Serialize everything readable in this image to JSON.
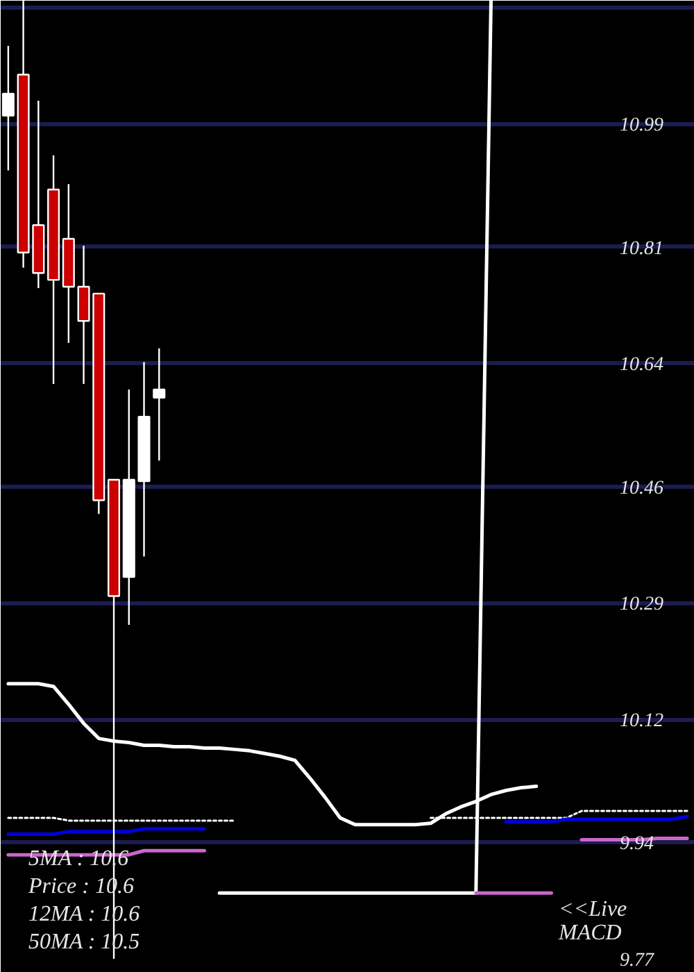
{
  "chart_data": {
    "type": "candlestick",
    "categories": [
      null,
      null,
      null,
      null,
      null,
      null,
      null,
      null,
      null,
      null,
      null,
      null,
      null,
      null,
      null,
      null,
      null,
      null,
      null,
      null,
      null,
      null,
      null,
      null,
      null,
      null,
      null,
      null,
      null,
      null,
      null,
      null,
      null,
      null,
      null,
      null,
      null,
      null,
      null,
      null,
      null,
      null,
      null,
      null,
      null,
      null
    ],
    "ohlc": [
      [
        11.002,
        11.104,
        10.922,
        11.034
      ],
      [
        11.062,
        11.17,
        10.78,
        10.802
      ],
      [
        10.842,
        11.024,
        10.75,
        10.772
      ],
      [
        10.894,
        10.944,
        10.61,
        10.762
      ],
      [
        10.822,
        10.902,
        10.67,
        10.752
      ],
      [
        10.752,
        10.812,
        10.61,
        10.702
      ],
      [
        10.742,
        10.742,
        10.42,
        10.44
      ],
      [
        10.47,
        10.47,
        9.77,
        10.3
      ],
      [
        10.328,
        10.602,
        10.258,
        10.47
      ],
      [
        10.468,
        10.642,
        10.358,
        10.562
      ],
      [
        10.59,
        10.662,
        10.498,
        10.602
      ],
      null,
      null,
      null,
      null,
      null,
      null,
      null,
      null,
      null,
      null,
      null,
      null,
      null,
      null,
      null,
      null,
      null,
      null,
      null,
      null,
      null,
      null,
      null,
      null,
      null,
      null,
      null,
      null,
      null,
      null,
      null,
      null,
      null,
      null,
      null
    ],
    "colors": [
      "#ffffff",
      "#cc0000",
      "#cc0000",
      "#cc0000",
      "#cc0000",
      "#cc0000",
      "#cc0000",
      "#cc0000",
      "#ffffff",
      "#ffffff",
      "#ffffff",
      null,
      null,
      null,
      null,
      null,
      null,
      null,
      null,
      null,
      null,
      null,
      null,
      null,
      null,
      null,
      null,
      null,
      null,
      null,
      null,
      null,
      null,
      null,
      null,
      null,
      null,
      null,
      null,
      null,
      null,
      null,
      null,
      null,
      null,
      null
    ],
    "series": [
      {
        "type": "line",
        "color": "#ffffff",
        "line_style": "solid",
        "values": [
          10.172,
          10.172,
          10.172,
          10.168,
          10.142,
          10.114,
          10.092,
          10.088,
          10.086,
          10.082,
          10.082,
          10.08,
          10.08,
          10.078,
          10.078,
          10.076,
          10.074,
          10.07,
          10.066,
          10.06,
          10.034,
          10.006,
          9.976,
          9.966,
          9.966,
          9.966,
          9.966,
          9.966,
          9.968,
          9.982,
          9.992,
          10.0,
          10.01,
          10.016,
          10.02,
          10.022,
          null,
          null,
          null,
          null,
          null,
          null,
          null,
          null,
          null,
          null
        ]
      },
      {
        "type": "line",
        "color": "#ffffff",
        "line_style": "dotted",
        "values": [
          9.976,
          9.976,
          9.976,
          9.976,
          9.972,
          9.972,
          9.972,
          9.972,
          9.972,
          9.972,
          9.972,
          9.972,
          9.972,
          9.972,
          9.972,
          9.972,
          null,
          null,
          null,
          null,
          null,
          null,
          null,
          null,
          null,
          null,
          null,
          null,
          9.976,
          9.976,
          9.976,
          9.976,
          9.976,
          9.976,
          9.976,
          9.976,
          9.976,
          9.976,
          9.986,
          9.986,
          9.986,
          9.986,
          9.986,
          9.986,
          9.986,
          9.986
        ]
      },
      {
        "type": "line",
        "color": "#0000dd",
        "line_style": "solid",
        "values": [
          9.952,
          9.952,
          9.952,
          9.952,
          9.956,
          9.956,
          9.956,
          9.956,
          9.956,
          9.96,
          9.96,
          9.96,
          9.96,
          9.96,
          null,
          null,
          null,
          null,
          null,
          null,
          null,
          null,
          null,
          null,
          null,
          null,
          null,
          null,
          null,
          null,
          null,
          null,
          null,
          9.97,
          9.97,
          9.97,
          9.97,
          9.974,
          9.974,
          9.974,
          9.974,
          9.974,
          9.974,
          9.974,
          9.974,
          9.978
        ]
      },
      {
        "type": "line",
        "color": "#cc66cc",
        "line_style": "solid",
        "values": [
          9.922,
          9.922,
          9.922,
          9.922,
          9.922,
          9.922,
          9.922,
          9.922,
          9.922,
          9.928,
          9.928,
          9.928,
          9.928,
          9.928,
          null,
          null,
          null,
          null,
          null,
          null,
          null,
          null,
          null,
          null,
          null,
          null,
          null,
          null,
          null,
          null,
          null,
          null,
          null,
          null,
          null,
          null,
          null,
          null,
          9.944,
          9.944,
          9.944,
          9.944,
          9.944,
          9.946,
          9.946,
          9.946
        ]
      },
      {
        "type": "line",
        "color": "#ffffff",
        "line_style": "solid",
        "values": [
          null,
          null,
          null,
          null,
          null,
          null,
          null,
          null,
          null,
          null,
          null,
          null,
          null,
          null,
          9.866,
          9.866,
          9.866,
          9.866,
          9.866,
          9.866,
          9.866,
          9.866,
          9.866,
          9.866,
          9.866,
          9.866,
          9.866,
          9.866,
          9.866,
          9.866,
          9.866,
          9.866,
          11.17,
          null,
          null,
          null,
          null,
          null,
          null,
          null,
          null,
          null,
          null,
          null,
          null,
          null
        ]
      },
      {
        "type": "line",
        "color": "#cc66cc",
        "line_style": "solid",
        "values": [
          null,
          null,
          null,
          null,
          null,
          null,
          null,
          null,
          null,
          null,
          null,
          null,
          null,
          null,
          null,
          null,
          null,
          null,
          null,
          null,
          null,
          null,
          null,
          null,
          null,
          null,
          null,
          null,
          null,
          null,
          null,
          9.866,
          9.866,
          9.866,
          9.866,
          9.866,
          9.866,
          null,
          null,
          null,
          null,
          null,
          null,
          null,
          null,
          null
        ]
      }
    ],
    "ylim": [
      9.77,
      11.17
    ],
    "yticks": [
      9.77,
      9.94,
      10.12,
      10.29,
      10.46,
      10.64,
      10.81,
      10.99,
      {
        "value": 11.16,
        "label": null
      }
    ],
    "grid": "y",
    "tick_labels": "y",
    "annotations": [
      "5MA : 10.6",
      "Price : 10.6",
      "12MA : 10.6",
      "50MA : 10.5",
      "<<Live\nMACD"
    ]
  }
}
